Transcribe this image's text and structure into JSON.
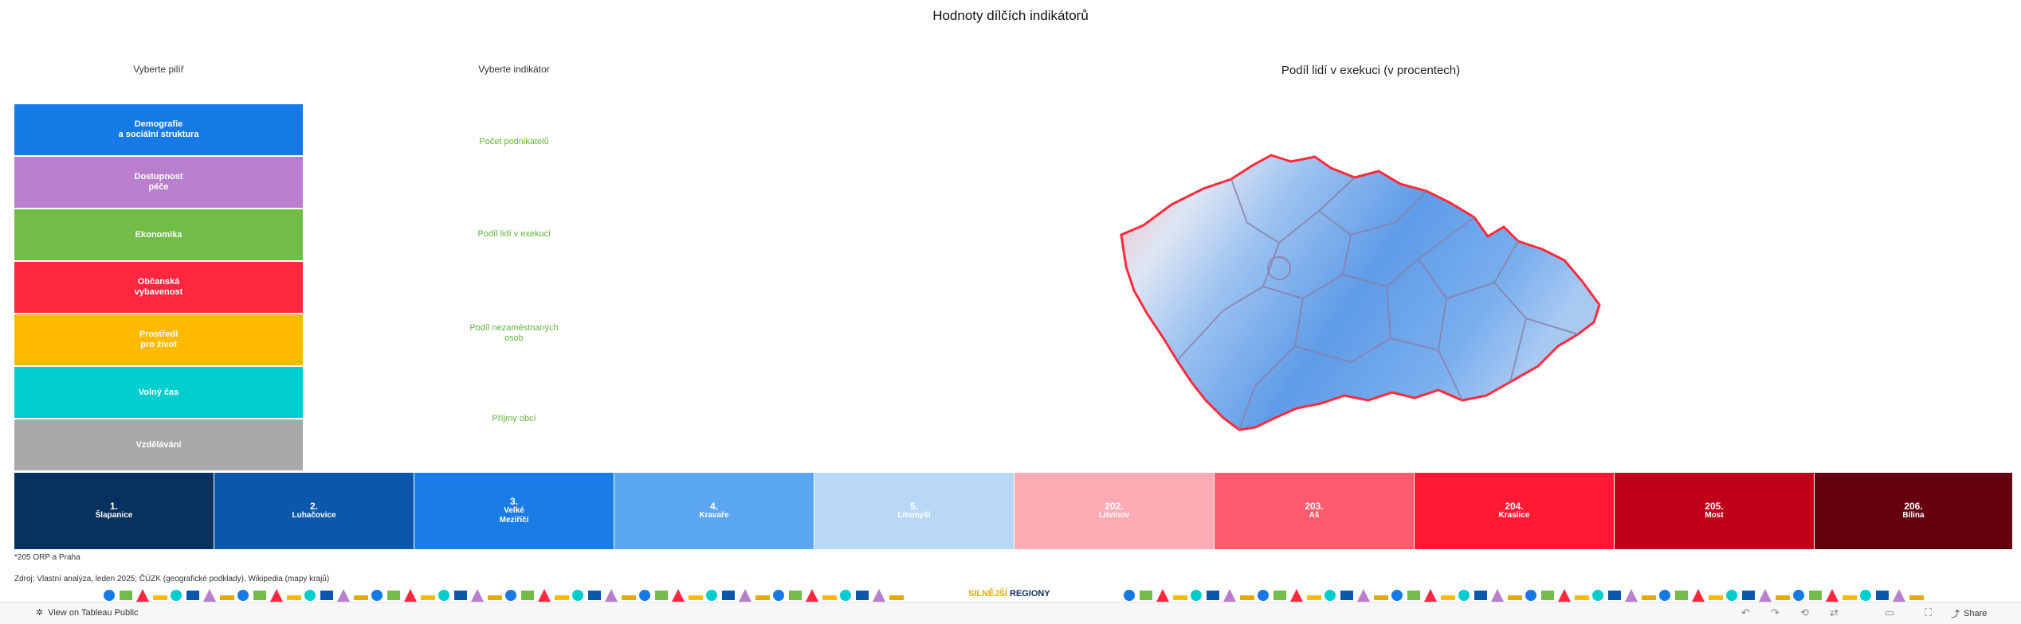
{
  "title": "Hodnoty dílčích indikátorů",
  "pillar_section": {
    "label": "Vyberte pilíř",
    "items": [
      {
        "label": "Demografie\na sociální struktura",
        "color": "#1579e6"
      },
      {
        "label": "Dostupnost\npéče",
        "color": "#b97ecd"
      },
      {
        "label": "Ekonomika",
        "color": "#71bd48"
      },
      {
        "label": "Občanská\nvybavenost",
        "color": "#ff2740"
      },
      {
        "label": "Prostředí\npro život",
        "color": "#ffb901"
      },
      {
        "label": "Volný čas",
        "color": "#00cdcd"
      },
      {
        "label": "Vzdělávání",
        "color": "#a9a9a9"
      }
    ]
  },
  "indicator_section": {
    "label": "Vyberte indikátor",
    "color": "#62b33a",
    "items": [
      {
        "label": "Počet podnikatelů"
      },
      {
        "label": "Podíl lidí v exekuci"
      },
      {
        "label": "Podíl nezaměstnaných\nosob"
      },
      {
        "label": "Příjmy obcí"
      }
    ]
  },
  "map": {
    "title": "Podíl lidí v exekuci (v procentech)"
  },
  "ranking": [
    {
      "rank": "1.",
      "name": "Šlapanice",
      "color": "#08315f"
    },
    {
      "rank": "2.",
      "name": "Luhačovice",
      "color": "#0b57ad"
    },
    {
      "rank": "3.",
      "name": "Velké\nMeziříčí",
      "color": "#1a7de6"
    },
    {
      "rank": "4.",
      "name": "Kravaře",
      "color": "#5aa6f2"
    },
    {
      "rank": "5.",
      "name": "Litomyšl",
      "color": "#b9d8f8"
    },
    {
      "rank": "202.",
      "name": "Litvínov",
      "color": "#fcaab4"
    },
    {
      "rank": "203.",
      "name": "Aš",
      "color": "#fe5b6e"
    },
    {
      "rank": "204.",
      "name": "Kraslice",
      "color": "#fe1a32"
    },
    {
      "rank": "205.",
      "name": "Most",
      "color": "#c00018"
    },
    {
      "rank": "206.",
      "name": "Bílina",
      "color": "#650010"
    }
  ],
  "footnote": "*205 ORP a Praha",
  "source": "Zdroj: Vlastní analýza, leden 2025; ČÚZK (geografické podklady), Wikipedia (mapy krajů)",
  "brand": {
    "accent": "SILNĚJŠÍ",
    "rest": " REGIONY"
  },
  "toolbar": {
    "tableau_link": "View on Tableau Public",
    "share": "Share"
  }
}
